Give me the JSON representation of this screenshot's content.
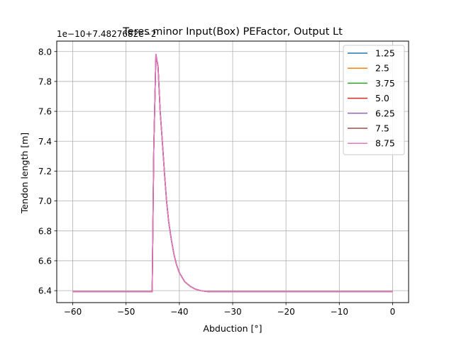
{
  "chart_data": {
    "type": "line",
    "title": "Teres minor Input(Box) PEFactor, Output Lt",
    "xlabel": "Abduction [°]",
    "ylabel": "Tendon length [m]",
    "offset_label": "1e−10+7.4827682e−2",
    "xlim": [
      -63,
      3
    ],
    "ylim": [
      6.32,
      8.07
    ],
    "xticks": [
      -60,
      -50,
      -40,
      -30,
      -20,
      -10,
      0
    ],
    "xtick_labels": [
      "−60",
      "−50",
      "−40",
      "−30",
      "−20",
      "−10",
      "0"
    ],
    "yticks": [
      6.4,
      6.6,
      6.8,
      7.0,
      7.2,
      7.4,
      7.6,
      7.8,
      8.0
    ],
    "ytick_labels": [
      "6.4",
      "6.6",
      "6.8",
      "7.0",
      "7.2",
      "7.4",
      "7.6",
      "7.8",
      "8.0"
    ],
    "grid": true,
    "legend_position": "top-right",
    "x": [
      -60,
      -50,
      -46,
      -45.3,
      -45.1,
      -44.8,
      -44.4,
      -44.0,
      -43.6,
      -43.2,
      -42.8,
      -42.4,
      -42.0,
      -41.5,
      -41.0,
      -40.5,
      -40.0,
      -39.0,
      -38.0,
      -37.0,
      -36.0,
      -35.0,
      -34.0,
      -30,
      -20,
      -10,
      0
    ],
    "series": [
      {
        "name": "1.25",
        "color": "#1f77b4",
        "values": [
          6.393,
          6.393,
          6.393,
          6.393,
          6.393,
          7.35,
          7.98,
          7.9,
          7.6,
          7.4,
          7.19,
          7.0,
          6.86,
          6.74,
          6.64,
          6.57,
          6.52,
          6.46,
          6.43,
          6.41,
          6.4,
          6.395,
          6.393,
          6.393,
          6.393,
          6.393,
          6.393
        ]
      },
      {
        "name": "2.5",
        "color": "#ff7f0e",
        "values": [
          6.393,
          6.393,
          6.393,
          6.393,
          6.393,
          7.35,
          7.98,
          7.9,
          7.6,
          7.4,
          7.19,
          7.0,
          6.86,
          6.74,
          6.64,
          6.57,
          6.52,
          6.46,
          6.43,
          6.41,
          6.4,
          6.395,
          6.393,
          6.393,
          6.393,
          6.393,
          6.393
        ]
      },
      {
        "name": "3.75",
        "color": "#2ca02c",
        "values": [
          6.393,
          6.393,
          6.393,
          6.393,
          6.393,
          7.35,
          7.98,
          7.9,
          7.6,
          7.4,
          7.19,
          7.0,
          6.86,
          6.74,
          6.64,
          6.57,
          6.52,
          6.46,
          6.43,
          6.41,
          6.4,
          6.395,
          6.393,
          6.393,
          6.393,
          6.393,
          6.393
        ]
      },
      {
        "name": "5.0",
        "color": "#d62728",
        "values": [
          6.393,
          6.393,
          6.393,
          6.393,
          6.393,
          7.35,
          7.98,
          7.9,
          7.6,
          7.4,
          7.19,
          7.0,
          6.86,
          6.74,
          6.64,
          6.57,
          6.52,
          6.46,
          6.43,
          6.41,
          6.4,
          6.395,
          6.393,
          6.393,
          6.393,
          6.393,
          6.393
        ]
      },
      {
        "name": "6.25",
        "color": "#9467bd",
        "values": [
          6.393,
          6.393,
          6.393,
          6.393,
          6.393,
          7.35,
          7.98,
          7.9,
          7.6,
          7.4,
          7.19,
          7.0,
          6.86,
          6.74,
          6.64,
          6.57,
          6.52,
          6.46,
          6.43,
          6.41,
          6.4,
          6.395,
          6.393,
          6.393,
          6.393,
          6.393,
          6.393
        ]
      },
      {
        "name": "7.5",
        "color": "#8c564b",
        "values": [
          6.393,
          6.393,
          6.393,
          6.393,
          6.393,
          7.35,
          7.98,
          7.9,
          7.6,
          7.4,
          7.19,
          7.0,
          6.86,
          6.74,
          6.64,
          6.57,
          6.52,
          6.46,
          6.43,
          6.41,
          6.4,
          6.395,
          6.393,
          6.393,
          6.393,
          6.393,
          6.393
        ]
      },
      {
        "name": "8.75",
        "color": "#e377c2",
        "values": [
          6.393,
          6.393,
          6.393,
          6.393,
          6.393,
          7.35,
          7.98,
          7.9,
          7.6,
          7.4,
          7.19,
          7.0,
          6.86,
          6.74,
          6.64,
          6.57,
          6.52,
          6.46,
          6.43,
          6.41,
          6.4,
          6.395,
          6.393,
          6.393,
          6.393,
          6.393,
          6.393
        ]
      }
    ]
  }
}
